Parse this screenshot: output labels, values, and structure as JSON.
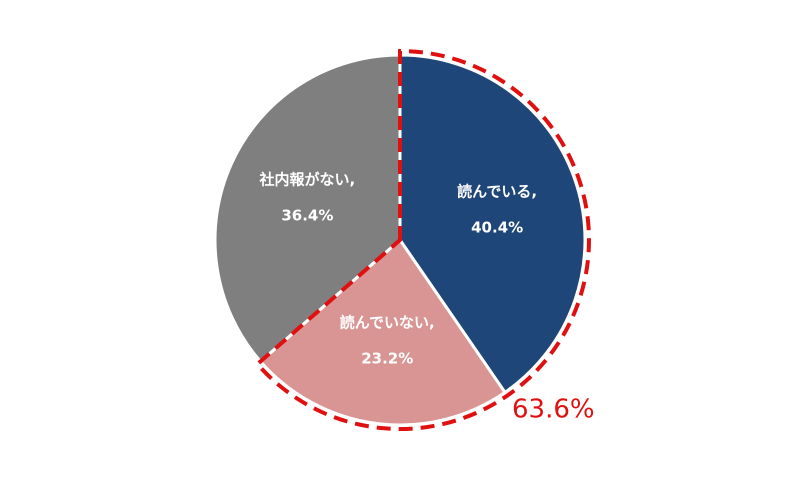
{
  "chart_data": {
    "type": "pie",
    "categories": [
      "読んでいる,",
      "読んでいない,",
      "社内報がない,"
    ],
    "values": [
      40.4,
      23.2,
      36.4
    ],
    "value_labels": [
      "40.4%",
      "23.2%",
      "36.4%"
    ],
    "colors": [
      "#1f4678",
      "#d99594",
      "#7f7f7f"
    ],
    "annotation": {
      "value": 63.6,
      "label": "63.6%",
      "color": "#e01010"
    }
  }
}
